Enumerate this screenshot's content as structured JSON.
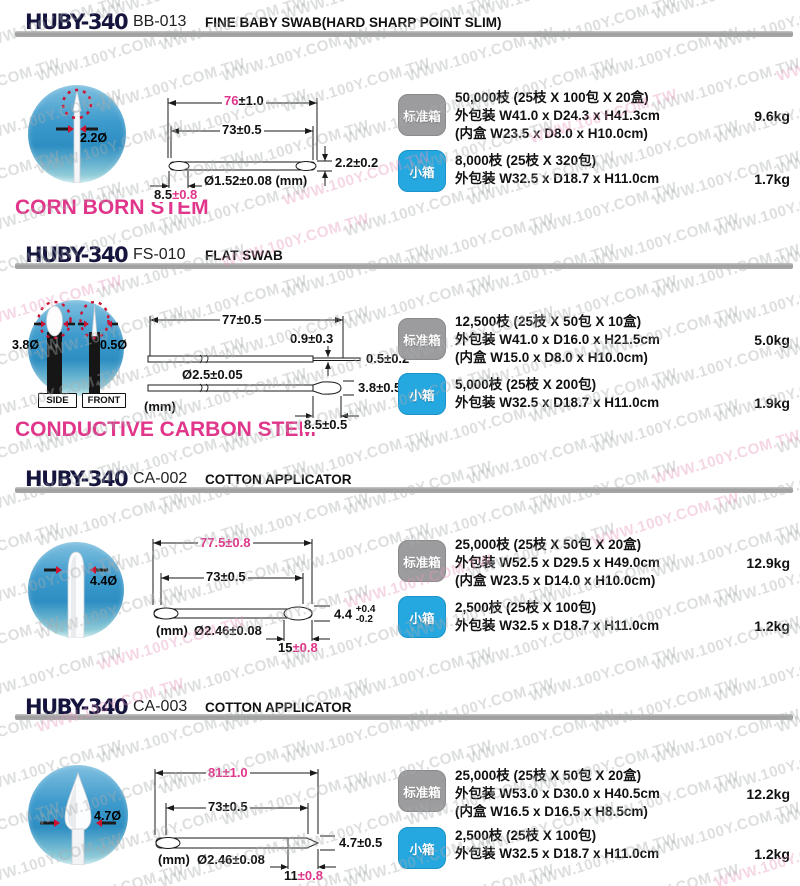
{
  "watermark": {
    "text": "WWW.100Y.COM.TW"
  },
  "colors": {
    "magenta": "#e0358a",
    "badge_gray": "#9c9c9e",
    "badge_blue": "#25a7e0",
    "logo_navy": "#14143c",
    "circle_blue": "#2d8ec2",
    "arrow_red": "#cc1133"
  },
  "badges": {
    "standard": "标准箱",
    "small": "小箱"
  },
  "sections": [
    {
      "logo": "HUBY-340",
      "code": "BB-013",
      "title": "FINE BABY SWAB(HARD SHARP POINT SLIM)",
      "stem_note": "CORN BORN STEM",
      "circle_label": "2.2Ø",
      "dims": {
        "overall_main": "76",
        "overall_tol": "±1.0",
        "body": "73±0.5",
        "tip_diameter": "2.2±0.2",
        "shaft": "Ø1.52±0.08 (mm)",
        "tip_len_main": "8.5",
        "tip_len_tol": "±0.8"
      },
      "standard": {
        "qty": "50,000枝 (25枝 X 100包 X 20盒)",
        "outer": "外包装 W41.0 x D24.3 x H41.3cm",
        "inner": "(内盒 W23.5 x D8.0 x H10.0cm)",
        "weight": "9.6kg"
      },
      "small": {
        "qty": "8,000枝 (25枝 X 320包)",
        "outer": "外包装 W32.5 x D18.7 x H11.0cm",
        "weight": "1.7kg"
      }
    },
    {
      "logo": "HUBY-340",
      "code": "FS-010",
      "title": "FLAT SWAB",
      "stem_note": "CONDUCTIVE CARBON STEM",
      "circle_label_side": "3.8Ø",
      "circle_label_front": "0.5Ø",
      "view_side": "SIDE",
      "view_front": "FRONT",
      "dims": {
        "overall": "77±0.5",
        "tip_thickness": "0.9±0.3",
        "tip_front": "0.5±0.2",
        "shaft": "Ø2.5±0.05",
        "paddle_width": "3.8±0.5",
        "unit": "(mm)",
        "tip_len": "8.5±0.5"
      },
      "standard": {
        "qty": "12,500枝 (25枝 X 50包 X 10盒)",
        "outer": "外包装 W41.0 x D16.0 x H21.5cm",
        "inner": "(内盒 W15.0 x D8.0 x H10.0cm)",
        "weight": "5.0kg"
      },
      "small": {
        "qty": "5,000枝 (25枝 X 200包)",
        "outer": "外包装 W32.5 x D18.7 x H11.0cm",
        "weight": "1.9kg"
      }
    },
    {
      "logo": "HUBY-340",
      "code": "CA-002",
      "title": "COTTON APPLICATOR",
      "circle_label": "4.4Ø",
      "dims": {
        "overall": "77.5±0.8",
        "body": "73±0.5",
        "tip_diameter_main": "4.4",
        "tip_tol_plus": "+0.4",
        "tip_tol_minus": "-0.2",
        "unit": "(mm)",
        "shaft": "Ø2.46±0.08",
        "tip_len_main": "15",
        "tip_len_tol": "±0.8"
      },
      "standard": {
        "qty": "25,000枝 (25枝 X 50包 X 20盒)",
        "outer": "外包装 W52.5 x D29.5 x H49.0cm",
        "inner": "(内盒 W23.5 x D14.0 x H10.0cm)",
        "weight": "12.9kg"
      },
      "small": {
        "qty": "2,500枝 (25枝 X 100包)",
        "outer": "外包装 W32.5 x D18.7 x H11.0cm",
        "weight": "1.2kg"
      }
    },
    {
      "logo": "HUBY-340",
      "code": "CA-003",
      "title": "COTTON APPLICATOR",
      "circle_label": "4.7Ø",
      "dims": {
        "overall": "81±1.0",
        "body": "73±0.5",
        "tip_diameter": "4.7±0.5",
        "unit": "(mm)",
        "shaft": "Ø2.46±0.08",
        "tip_len_main": "11",
        "tip_len_tol": "±0.8"
      },
      "standard": {
        "qty": "25,000枝 (25枝 X 50包 X 20盒)",
        "outer": "外包装 W53.0 x D30.0 x H40.5cm",
        "inner": "(内盒 W16.5 x D16.5 x H8.5cm)",
        "weight": "12.2kg"
      },
      "small": {
        "qty": "2,500枝 (25枝 X 100包)",
        "outer": "外包装 W32.5 x D18.7 x H11.0cm",
        "weight": "1.2kg"
      }
    }
  ]
}
